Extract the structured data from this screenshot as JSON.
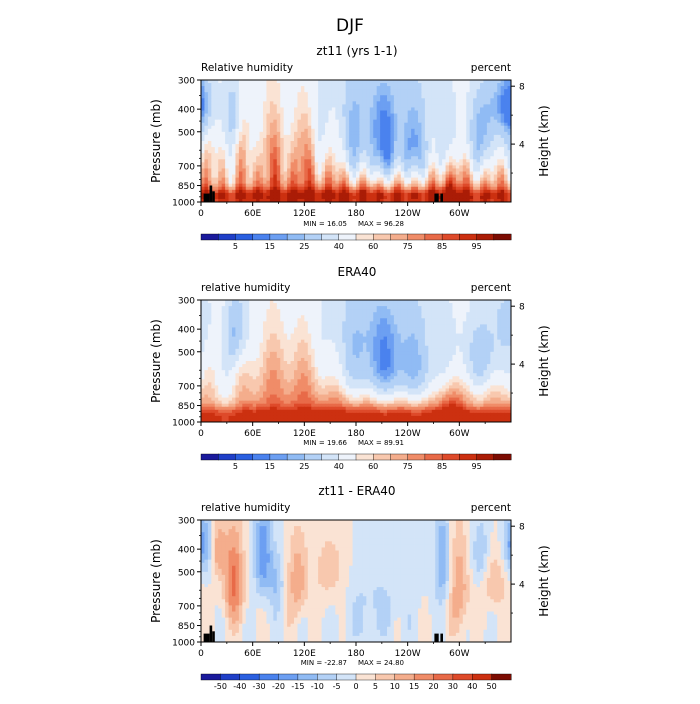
{
  "title": "DJF",
  "panels": [
    {
      "title": "zt11 (yrs 1-1)",
      "left_label": "Relative humidity",
      "right_label": "percent",
      "min_text": "MIN =   16.05",
      "max_text": "MAX =   96.28",
      "mode": "model",
      "terrain": true
    },
    {
      "title": "ERA40",
      "left_label": "relative humidity",
      "right_label": "percent",
      "min_text": "MIN =   19.66",
      "max_text": "MAX =   89.91",
      "mode": "obs",
      "terrain": false
    },
    {
      "title": "zt11 - ERA40",
      "left_label": "relative humidity",
      "right_label": "percent",
      "min_text": "MIN =  -22.87",
      "max_text": "MAX =   24.80",
      "mode": "diff",
      "terrain": true
    }
  ],
  "axes": {
    "ylabel": "Pressure  (mb)",
    "y2label": "Height  (km)",
    "pressure_ticks": [
      "300",
      "400",
      "500",
      "700",
      "850",
      "1000"
    ],
    "pressure_values": [
      300,
      400,
      500,
      700,
      850,
      1000
    ],
    "height_ticks": [
      "8",
      "4"
    ],
    "height_values": [
      8,
      4
    ],
    "lon_ticks": [
      "0",
      "60E",
      "120E",
      "180",
      "120W",
      "60W"
    ],
    "lon_values": [
      0,
      60,
      120,
      180,
      240,
      300
    ]
  },
  "colorbars": {
    "humidity": {
      "labels": [
        "5",
        "15",
        "25",
        "40",
        "60",
        "75",
        "85",
        "95"
      ],
      "colors": [
        "#1a1a9c",
        "#1f3fc8",
        "#2a5fe0",
        "#4a82ee",
        "#6c9ff2",
        "#90bbf4",
        "#b3d1f6",
        "#d3e4f8",
        "#eef3fb",
        "#fae3d4",
        "#f8c8ae",
        "#f4ad8c",
        "#f08c68",
        "#e86a48",
        "#de4a2a",
        "#cc3010",
        "#aa1c06",
        "#7c0c02"
      ]
    },
    "difference": {
      "labels": [
        "-50",
        "-40",
        "-30",
        "-20",
        "-15",
        "-10",
        "-5",
        "0",
        "5",
        "10",
        "15",
        "20",
        "30",
        "40",
        "50"
      ],
      "colors": [
        "#1a1a9c",
        "#1f3fc8",
        "#2a5fe0",
        "#4a82ee",
        "#6c9ff2",
        "#90bbf4",
        "#b3d1f6",
        "#d3e4f8",
        "#fae3d4",
        "#f8c8ae",
        "#f4ad8c",
        "#f08c68",
        "#e86a48",
        "#de4a2a",
        "#cc3010",
        "#7c0c02"
      ]
    }
  },
  "chart_data": [
    {
      "type": "heatmap",
      "title": "zt11 (yrs 1-1)",
      "xlabel": "",
      "ylabel": "Pressure (mb)",
      "y2label": "Height (km)",
      "xlim": [
        0,
        360
      ],
      "ylim": [
        1000,
        300
      ],
      "variable": "Relative humidity",
      "units": "percent",
      "min": 16.05,
      "max": 96.28,
      "levels": [
        5,
        15,
        25,
        40,
        60,
        75,
        85,
        95
      ]
    },
    {
      "type": "heatmap",
      "title": "ERA40",
      "xlabel": "",
      "ylabel": "Pressure (mb)",
      "y2label": "Height (km)",
      "xlim": [
        0,
        360
      ],
      "ylim": [
        1000,
        300
      ],
      "variable": "relative humidity",
      "units": "percent",
      "min": 19.66,
      "max": 89.91,
      "levels": [
        5,
        15,
        25,
        40,
        60,
        75,
        85,
        95
      ]
    },
    {
      "type": "heatmap",
      "title": "zt11 - ERA40",
      "xlabel": "",
      "ylabel": "Pressure (mb)",
      "y2label": "Height (km)",
      "xlim": [
        0,
        360
      ],
      "ylim": [
        1000,
        300
      ],
      "variable": "relative humidity",
      "units": "percent",
      "min": -22.87,
      "max": 24.8,
      "levels": [
        -50,
        -40,
        -30,
        -20,
        -15,
        -10,
        -5,
        0,
        5,
        10,
        15,
        20,
        30,
        40,
        50
      ]
    }
  ]
}
